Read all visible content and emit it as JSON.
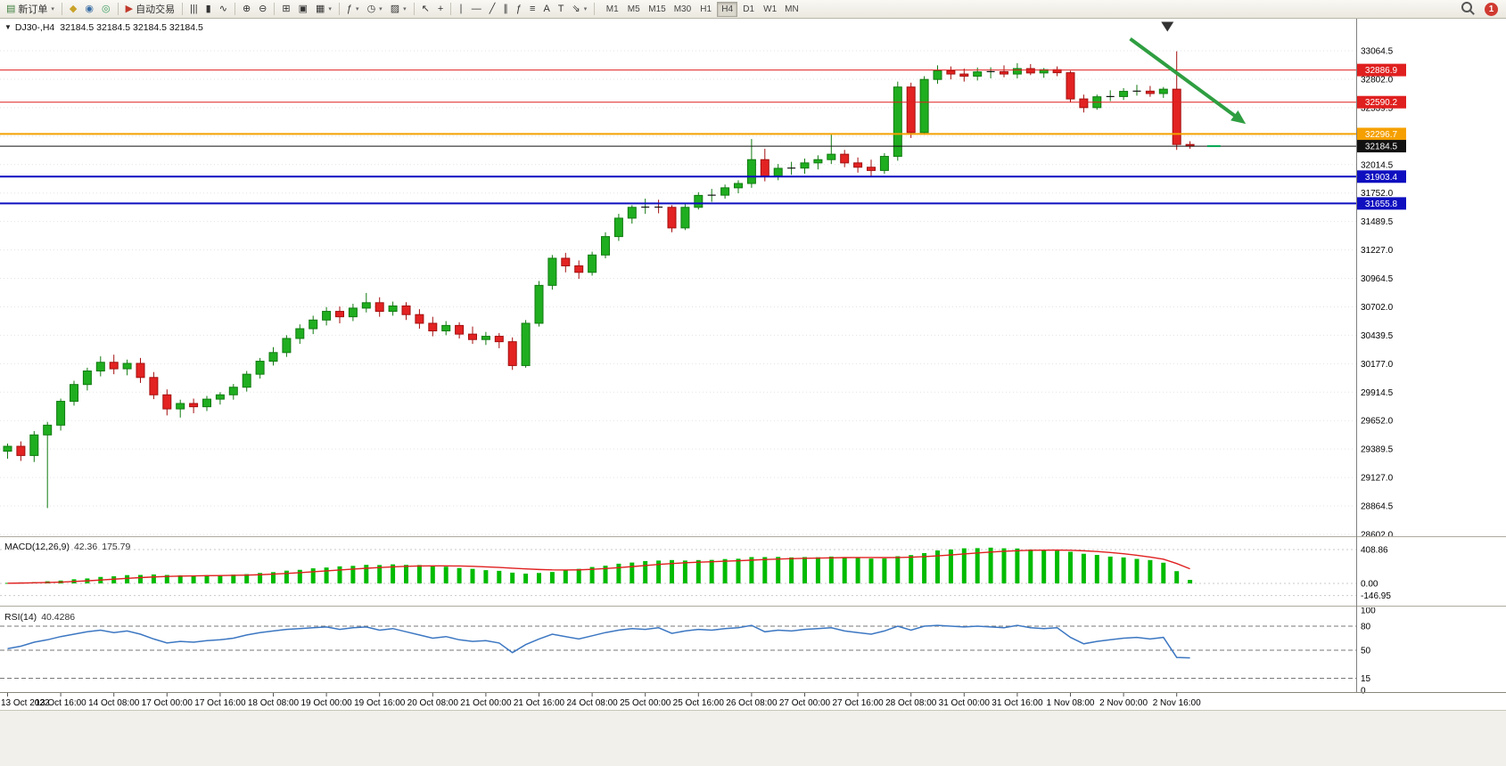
{
  "toolbar": {
    "groups": [
      {
        "items": [
          {
            "name": "new-order-button",
            "glyph": "▤",
            "glyph_color": "#3a7d3a",
            "label": "新订单",
            "dropdown": true
          }
        ]
      },
      {
        "items": [
          {
            "name": "charts-menu-icon",
            "glyph": "◆",
            "glyph_color": "#c9a227"
          },
          {
            "name": "market-watch-icon",
            "glyph": "◉",
            "glyph_color": "#3a6ea5"
          },
          {
            "name": "navigator-icon",
            "glyph": "◎",
            "glyph_color": "#3a9e5f"
          }
        ]
      },
      {
        "items": [
          {
            "name": "autotrading-button",
            "glyph": "▶",
            "glyph_color": "#c0392b",
            "label": "自动交易"
          }
        ]
      },
      {
        "items": [
          {
            "name": "bar-chart-icon",
            "glyph": "|||"
          },
          {
            "name": "candlestick-icon",
            "glyph": "▮"
          },
          {
            "name": "line-chart-icon",
            "glyph": "∿"
          }
        ]
      },
      {
        "items": [
          {
            "name": "zoom-in-icon",
            "glyph": "⊕"
          },
          {
            "name": "zoom-out-icon",
            "glyph": "⊖"
          }
        ]
      },
      {
        "items": [
          {
            "name": "tile-windows-icon",
            "glyph": "⊞"
          },
          {
            "name": "auto-arrange-icon",
            "glyph": "▣"
          },
          {
            "name": "grid-icon",
            "glyph": "▦",
            "dropdown": true
          }
        ]
      },
      {
        "items": [
          {
            "name": "indicators-icon",
            "glyph": "ƒ",
            "dropdown": true
          },
          {
            "name": "periods-icon",
            "glyph": "◷",
            "dropdown": true
          },
          {
            "name": "templates-icon",
            "glyph": "▨",
            "dropdown": true
          }
        ]
      },
      {
        "items": [
          {
            "name": "cursor-icon",
            "glyph": "↖"
          },
          {
            "name": "crosshair-icon",
            "glyph": "+"
          }
        ]
      },
      {
        "items": [
          {
            "name": "vertical-line-icon",
            "glyph": "∣"
          },
          {
            "name": "horizontal-line-icon",
            "glyph": "―"
          },
          {
            "name": "trendline-icon",
            "glyph": "╱"
          },
          {
            "name": "channel-icon",
            "glyph": "∥"
          },
          {
            "name": "fibonacci-icon",
            "glyph": "ƒ"
          },
          {
            "name": "shapes-icon",
            "glyph": "≡"
          },
          {
            "name": "text-icon",
            "glyph": "A"
          },
          {
            "name": "label-icon",
            "glyph": "T"
          },
          {
            "name": "arrows-icon",
            "glyph": "⇘",
            "dropdown": true
          }
        ]
      }
    ],
    "timeframes": {
      "items": [
        "M1",
        "M5",
        "M15",
        "M30",
        "H1",
        "H4",
        "D1",
        "W1",
        "MN"
      ],
      "active": "H4"
    },
    "notification_badge": "1"
  },
  "chart": {
    "title": {
      "dropdown_glyph": "▼",
      "symbol": "DJ30-,H4",
      "ohlc": "32184.5 32184.5 32184.5 32184.5"
    },
    "colors": {
      "bull": "#1fae1f",
      "bull_border": "#117a11",
      "bear": "#e32222",
      "bear_border": "#a30f0f",
      "macd_bar": "#00bb00",
      "macd_signal": "#e02020",
      "rsi_line": "#3c77c2",
      "grid": "#e3e3e3"
    },
    "levels": [
      {
        "price": 32886.9,
        "label": "32886.9",
        "color": "#e01f1f",
        "width": 1
      },
      {
        "price": 32590.2,
        "label": "32590.2",
        "color": "#e01f1f",
        "width": 1
      },
      {
        "price": 32296.7,
        "label": "32296.7",
        "color": "#f5a000",
        "width": 2
      },
      {
        "price": 32184.5,
        "label": "32184.5",
        "color": "#111111",
        "width": 1
      },
      {
        "price": 31903.4,
        "label": "31903.4",
        "color": "#0f0fc0",
        "width": 2
      },
      {
        "price": 31655.8,
        "label": "31655.8",
        "color": "#0f0fc0",
        "width": 2
      }
    ],
    "indicators": {
      "macd": {
        "name": "MACD(12,26,9)",
        "value_main": "42.36",
        "value_signal": "175.79"
      },
      "rsi": {
        "name": "RSI(14)",
        "value": "40.4286"
      }
    }
  },
  "chart_data": {
    "type": "candlestick",
    "symbol": "DJ30-",
    "period": "H4",
    "title": "DJ30-,H4",
    "ylim": [
      28450,
      33360
    ],
    "price_axis_ticks": [
      "33064.5",
      "32802.0",
      "32539.5",
      "32277.0",
      "32014.5",
      "31752.0",
      "31489.5",
      "31227.0",
      "30964.5",
      "30702.0",
      "30439.5",
      "30177.0",
      "29914.5",
      "29652.0",
      "29389.5",
      "29127.0",
      "28864.5",
      "28602.0"
    ],
    "x_labels": [
      "13 Oct 2022",
      "13 Oct 16:00",
      "14 Oct 08:00",
      "17 Oct 00:00",
      "17 Oct 16:00",
      "18 Oct 08:00",
      "19 Oct 00:00",
      "19 Oct 16:00",
      "20 Oct 08:00",
      "21 Oct 00:00",
      "21 Oct 16:00",
      "24 Oct 08:00",
      "25 Oct 00:00",
      "25 Oct 16:00",
      "26 Oct 08:00",
      "27 Oct 00:00",
      "27 Oct 16:00",
      "28 Oct 08:00",
      "31 Oct 00:00",
      "31 Oct 16:00",
      "1 Nov 08:00",
      "2 Nov 00:00",
      "2 Nov 16:00"
    ],
    "x_label_every": 4,
    "candles": [
      [
        29370,
        29440,
        29300,
        29415
      ],
      [
        29415,
        29460,
        29280,
        29330
      ],
      [
        29330,
        29555,
        29270,
        29520
      ],
      [
        29520,
        29640,
        28845,
        29610
      ],
      [
        29610,
        29855,
        29560,
        29830
      ],
      [
        29830,
        30020,
        29790,
        29985
      ],
      [
        29985,
        30140,
        29930,
        30110
      ],
      [
        30110,
        30245,
        30060,
        30190
      ],
      [
        30190,
        30260,
        30080,
        30130
      ],
      [
        30130,
        30215,
        30070,
        30180
      ],
      [
        30180,
        30230,
        30000,
        30050
      ],
      [
        30050,
        30100,
        29850,
        29890
      ],
      [
        29890,
        29940,
        29700,
        29760
      ],
      [
        29760,
        29845,
        29680,
        29810
      ],
      [
        29810,
        29855,
        29720,
        29780
      ],
      [
        29780,
        29880,
        29740,
        29850
      ],
      [
        29850,
        29915,
        29800,
        29890
      ],
      [
        29890,
        29990,
        29845,
        29960
      ],
      [
        29960,
        30110,
        29920,
        30080
      ],
      [
        30080,
        30230,
        30040,
        30200
      ],
      [
        30200,
        30330,
        30160,
        30280
      ],
      [
        30280,
        30440,
        30240,
        30410
      ],
      [
        30410,
        30540,
        30360,
        30500
      ],
      [
        30500,
        30620,
        30450,
        30580
      ],
      [
        30580,
        30700,
        30530,
        30660
      ],
      [
        30660,
        30705,
        30550,
        30610
      ],
      [
        30610,
        30730,
        30570,
        30690
      ],
      [
        30690,
        30830,
        30650,
        30740
      ],
      [
        30740,
        30790,
        30610,
        30660
      ],
      [
        30660,
        30750,
        30620,
        30710
      ],
      [
        30710,
        30745,
        30580,
        30630
      ],
      [
        30630,
        30680,
        30500,
        30550
      ],
      [
        30550,
        30610,
        30430,
        30480
      ],
      [
        30480,
        30570,
        30440,
        30530
      ],
      [
        30530,
        30560,
        30410,
        30450
      ],
      [
        30450,
        30520,
        30360,
        30400
      ],
      [
        30400,
        30470,
        30350,
        30430
      ],
      [
        30430,
        30460,
        30320,
        30380
      ],
      [
        30380,
        30420,
        30120,
        30160
      ],
      [
        30160,
        30580,
        30140,
        30550
      ],
      [
        30550,
        30940,
        30520,
        30900
      ],
      [
        30900,
        31180,
        30860,
        31150
      ],
      [
        31150,
        31200,
        31020,
        31080
      ],
      [
        31080,
        31130,
        30960,
        31020
      ],
      [
        31020,
        31210,
        30990,
        31180
      ],
      [
        31180,
        31390,
        31150,
        31350
      ],
      [
        31350,
        31560,
        31310,
        31520
      ],
      [
        31520,
        31640,
        31470,
        31620
      ],
      [
        31620,
        31700,
        31560,
        31622
      ],
      [
        31622,
        31690,
        31565,
        31620
      ],
      [
        31620,
        31640,
        31390,
        31430
      ],
      [
        31430,
        31650,
        31410,
        31620
      ],
      [
        31620,
        31760,
        31600,
        31730
      ],
      [
        31730,
        31790,
        31670,
        31732
      ],
      [
        31732,
        31830,
        31700,
        31800
      ],
      [
        31800,
        31870,
        31750,
        31840
      ],
      [
        31840,
        32250,
        31800,
        32060
      ],
      [
        32060,
        32160,
        31860,
        31910
      ],
      [
        31910,
        32020,
        31870,
        31980
      ],
      [
        31980,
        32040,
        31920,
        31982
      ],
      [
        31982,
        32070,
        31930,
        32030
      ],
      [
        32030,
        32100,
        31970,
        32060
      ],
      [
        32060,
        32300,
        32020,
        32110
      ],
      [
        32110,
        32150,
        31990,
        32030
      ],
      [
        32030,
        32080,
        31940,
        31990
      ],
      [
        31990,
        32060,
        31910,
        31960
      ],
      [
        31960,
        32120,
        31930,
        32090
      ],
      [
        32090,
        32780,
        32050,
        32730
      ],
      [
        32730,
        32770,
        32260,
        32310
      ],
      [
        32310,
        32830,
        32290,
        32800
      ],
      [
        32800,
        32930,
        32760,
        32880
      ],
      [
        32880,
        32920,
        32800,
        32850
      ],
      [
        32850,
        32900,
        32780,
        32830
      ],
      [
        32830,
        32910,
        32790,
        32870
      ],
      [
        32870,
        32912,
        32810,
        32872
      ],
      [
        32872,
        32930,
        32820,
        32850
      ],
      [
        32850,
        32950,
        32810,
        32900
      ],
      [
        32900,
        32942,
        32840,
        32860
      ],
      [
        32860,
        32905,
        32815,
        32890
      ],
      [
        32890,
        32920,
        32830,
        32862
      ],
      [
        32862,
        32880,
        32590,
        32620
      ],
      [
        32620,
        32660,
        32495,
        32540
      ],
      [
        32540,
        32660,
        32520,
        32640
      ],
      [
        32640,
        32700,
        32600,
        32642
      ],
      [
        32642,
        32720,
        32610,
        32690
      ],
      [
        32690,
        32750,
        32650,
        32692
      ],
      [
        32692,
        32740,
        32640,
        32670
      ],
      [
        32670,
        32730,
        32630,
        32710
      ],
      [
        32710,
        33060,
        32150,
        32200
      ],
      [
        32200,
        32230,
        32160,
        32184.5
      ]
    ],
    "macd": {
      "params": "12,26,9",
      "current": [
        42.36,
        175.79
      ],
      "axis": [
        {
          "label": "408.86",
          "value": 408.86
        },
        {
          "label": "0.00",
          "value": 0
        },
        {
          "label": "-146.95",
          "value": -146.95
        }
      ],
      "histogram": [
        6,
        12,
        16,
        26,
        34,
        50,
        60,
        78,
        86,
        100,
        102,
        108,
        102,
        98,
        96,
        100,
        98,
        106,
        112,
        126,
        136,
        154,
        164,
        182,
        192,
        206,
        212,
        224,
        222,
        230,
        224,
        222,
        208,
        202,
        186,
        176,
        160,
        152,
        130,
        118,
        126,
        138,
        162,
        176,
        198,
        214,
        238,
        252,
        270,
        276,
        282,
        276,
        282,
        284,
        294,
        298,
        318,
        318,
        320,
        314,
        318,
        316,
        324,
        316,
        312,
        300,
        302,
        328,
        342,
        366,
        398,
        410,
        424,
        426,
        432,
        424,
        422,
        410,
        406,
        394,
        382,
        358,
        344,
        324,
        314,
        296,
        282,
        250,
        148,
        42.36
      ],
      "signal": [
        2,
        4,
        7,
        11,
        16,
        23,
        31,
        41,
        51,
        61,
        70,
        78,
        84,
        88,
        91,
        93,
        95,
        97,
        100,
        105,
        112,
        120,
        130,
        140,
        151,
        162,
        173,
        183,
        192,
        200,
        206,
        210,
        212,
        212,
        210,
        206,
        200,
        193,
        184,
        175,
        168,
        163,
        162,
        164,
        170,
        179,
        190,
        203,
        216,
        229,
        240,
        249,
        256,
        262,
        268,
        274,
        281,
        288,
        294,
        299,
        303,
        306,
        309,
        312,
        313,
        313,
        312,
        313,
        317,
        324,
        333,
        344,
        356,
        368,
        379,
        388,
        395,
        400,
        402,
        403,
        400,
        394,
        385,
        373,
        358,
        340,
        318,
        292,
        240,
        175.79
      ]
    },
    "rsi": {
      "period": 14,
      "current": 40.4286,
      "axis": [
        {
          "label": "100",
          "value": 100
        },
        {
          "label": "80",
          "value": 80,
          "dashed": true
        },
        {
          "label": "50",
          "value": 50,
          "dashed": true
        },
        {
          "label": "15",
          "value": 15,
          "dashed": true
        },
        {
          "label": "0",
          "value": 0
        }
      ],
      "values": [
        52,
        55,
        60,
        63,
        67,
        70,
        73,
        75,
        72,
        74,
        70,
        64,
        59,
        61,
        60,
        62,
        63,
        65,
        69,
        72,
        74,
        76,
        77,
        78,
        79,
        76,
        78,
        79,
        75,
        77,
        73,
        69,
        65,
        67,
        63,
        61,
        62,
        59,
        47,
        57,
        64,
        70,
        67,
        64,
        68,
        72,
        75,
        77,
        76,
        78,
        71,
        74,
        76,
        75,
        77,
        78,
        81,
        73,
        75,
        74,
        76,
        77,
        78,
        74,
        72,
        70,
        74,
        80,
        75,
        80,
        81,
        80,
        79,
        80,
        79,
        78,
        81,
        78,
        77,
        78,
        66,
        58,
        61,
        63,
        65,
        66,
        64,
        66,
        41,
        40.43
      ]
    },
    "annotations": {
      "trend_arrow": {
        "from": {
          "i": 84.5,
          "price": 33175
        },
        "to": {
          "i": 93.2,
          "price": 32390
        },
        "color": "#2f9e41"
      },
      "top_marker": {
        "i": 87.3,
        "price": 33290,
        "color": "#333333"
      },
      "ask_tick": {
        "i_from": 90.3,
        "i_to": 91.3,
        "price": 32184.5,
        "color": "#00a651"
      }
    }
  }
}
